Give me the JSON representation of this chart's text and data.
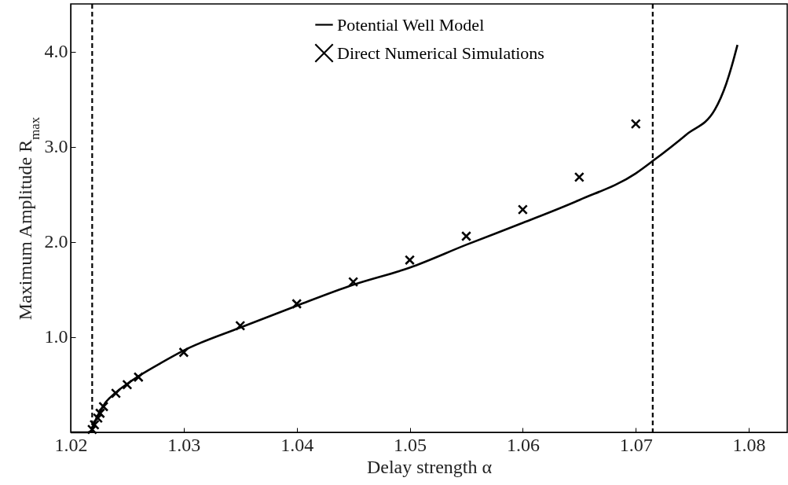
{
  "chart_data": {
    "type": "line",
    "xlabel": "Delay strength α",
    "ylabel": "Maximum Amplitude R$_{max}$",
    "xlim": [
      1.02,
      1.0834
    ],
    "ylim": [
      0,
      4.5
    ],
    "xticks": [
      1.02,
      1.03,
      1.04,
      1.05,
      1.06,
      1.07,
      1.08
    ],
    "yticks": [
      {
        "value": 1,
        "label": "1.0"
      },
      {
        "value": 2,
        "label": "2.0"
      },
      {
        "value": 3,
        "label": "3.0"
      },
      {
        "value": 4,
        "label": "4.0"
      }
    ],
    "grid": false,
    "legend": "top",
    "line_style": "solid",
    "series": [
      {
        "name": "Potential Well Model",
        "color": "#000000",
        "marker": "none",
        "x": [
          1.02,
          1.0215,
          1.0219,
          1.022,
          1.0222,
          1.0225,
          1.023,
          1.024,
          1.025,
          1.026,
          1.028,
          1.03,
          1.035,
          1.04,
          1.045,
          1.05,
          1.055,
          1.06,
          1.065,
          1.07,
          1.0715,
          1.0745,
          1.077,
          1.078,
          1.0785,
          1.079
        ],
        "values": [
          0,
          0,
          0.02,
          0.07,
          0.13,
          0.2,
          0.3,
          0.42,
          0.51,
          0.59,
          0.73,
          0.86,
          1.1,
          1.33,
          1.55,
          1.73,
          1.97,
          2.2,
          2.44,
          2.72,
          2.85,
          3.13,
          3.39,
          3.66,
          3.85,
          4.07
        ]
      },
      {
        "name": "Direct Numerical Simulations",
        "type": "scatter",
        "color": "#000000",
        "marker": "cross",
        "x": [
          1.0219,
          1.0221,
          1.0224,
          1.0226,
          1.0229,
          1.024,
          1.025,
          1.026,
          1.03,
          1.035,
          1.04,
          1.045,
          1.05,
          1.055,
          1.06,
          1.065,
          1.07
        ],
        "values": [
          0.03,
          0.08,
          0.15,
          0.2,
          0.27,
          0.41,
          0.5,
          0.58,
          0.84,
          1.12,
          1.35,
          1.58,
          1.81,
          2.06,
          2.34,
          2.68,
          3.24
        ]
      }
    ],
    "ref_lines": [
      {
        "axis": "x",
        "value": 1.0219,
        "line_style": "dashed",
        "color": "#000000"
      },
      {
        "axis": "x",
        "value": 1.0715,
        "line_style": "dashed",
        "color": "#000000"
      }
    ]
  }
}
